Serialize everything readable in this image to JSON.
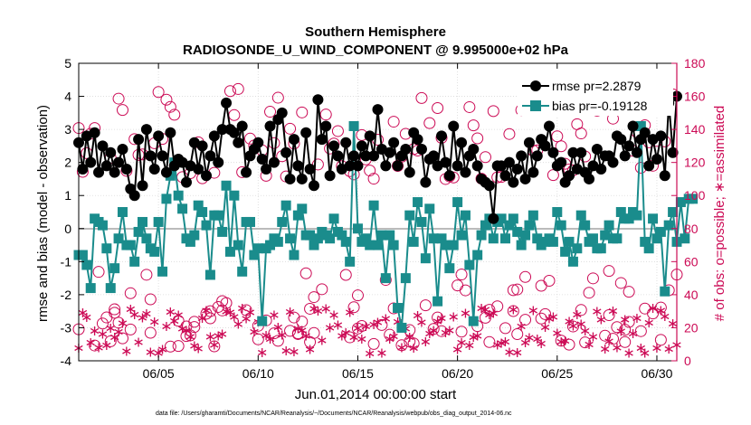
{
  "chart_data": {
    "type": "line",
    "title_line1": "Southern Hemisphere",
    "title_line2": "RADIOSONDE_U_WIND_COMPONENT @ 9.995000e+02 hPa",
    "xlabel": "Jun.01,2014 00:00:00 start",
    "ylabel_left": "rmse and bias (model - observation)",
    "ylabel_right": "# of obs: o=possible; ∗=assimilated",
    "footnote": "data file: /Users/gharamti/Documents/NCAR/Reanalysis/~/Documents/NCAR/Reanalysis/webpub/obs_diag_output_2014-06.nc",
    "x_tick_labels": [
      "06/05",
      "06/10",
      "06/15",
      "06/20",
      "06/25",
      "06/30"
    ],
    "x_tick_days": [
      5,
      10,
      15,
      20,
      25,
      30
    ],
    "xlim": [
      1,
      31
    ],
    "ylim_left": [
      -4,
      5
    ],
    "y_ticks_left": [
      "5",
      "4",
      "3",
      "2",
      "1",
      "0",
      "-1",
      "-2",
      "-3",
      "-4"
    ],
    "ylim_right": [
      0,
      180
    ],
    "y_ticks_right": [
      "180",
      "160",
      "140",
      "120",
      "100",
      "80",
      "60",
      "40",
      "20",
      "0"
    ],
    "grid": true,
    "legend_position": "top-right",
    "colors": {
      "rmse": "#000000",
      "bias": "#1a8c8c",
      "obs": "#cc0a55",
      "zero_line": "#bbbbbb"
    },
    "series": [
      {
        "name": "rmse pr=2.2879",
        "marker": "filled-circle",
        "values": [
          2.6,
          1.8,
          2.8,
          2.0,
          2.9,
          1.7,
          2.5,
          1.9,
          2.3,
          1.7,
          2.0,
          2.4,
          1.8,
          1.2,
          1.0,
          2.7,
          1.3,
          3.0,
          2.2,
          1.8,
          2.8,
          2.2,
          1.7,
          2.9,
          1.9,
          2.1,
          2.0,
          1.4,
          1.9,
          2.6,
          1.8,
          2.5,
          1.6,
          2.2,
          2.8,
          2.0,
          3.0,
          3.8,
          3.0,
          2.9,
          2.6,
          3.1,
          1.7,
          2.2,
          2.4,
          2.6,
          2.1,
          1.8,
          3.1,
          2.0,
          3.3,
          3.5,
          2.3,
          1.5,
          2.7,
          1.9,
          1.5,
          2.9,
          1.8,
          1.3,
          3.9,
          2.7,
          3.1,
          1.6,
          2.5,
          2.2,
          1.8,
          2.6,
          1.9,
          2.2,
          1.9,
          2.5,
          2.2,
          2.8,
          2.2,
          3.6,
          2.4,
          1.9,
          2.3,
          2.6,
          1.9,
          2.2,
          2.4,
          1.7,
          2.9,
          2.7,
          2.4,
          1.4,
          2.1,
          2.2,
          1.9,
          2.8,
          2.0,
          1.6,
          3.1,
          1.9,
          2.6,
          1.7,
          2.2,
          2.4,
          1.9,
          1.5,
          1.4,
          1.3,
          0.3,
          1.9,
          1.9,
          1.6,
          2.0,
          1.4,
          1.8,
          2.2,
          1.5,
          2.6,
          1.7,
          2.2,
          2.7,
          2.5,
          3.1,
          2.3,
          1.9,
          2.0,
          1.4,
          1.6,
          2.3,
          1.8,
          2.3,
          1.7,
          1.5,
          1.9,
          2.4,
          1.8,
          2.2,
          2.2,
          2.0,
          2.8,
          2.7,
          2.2,
          2.5,
          3.1,
          2.3,
          2.7,
          2.9,
          1.9,
          2.7,
          2.1,
          2.8,
          1.6,
          3.8,
          2.3,
          4.0
        ]
      },
      {
        "name": "bias pr=-0.19128",
        "marker": "filled-square",
        "values": [
          -0.8,
          -0.8,
          -1.1,
          -1.8,
          0.3,
          0.2,
          0.1,
          -0.6,
          -1.8,
          -1.2,
          -0.3,
          0.5,
          -0.5,
          -0.5,
          -1.0,
          -0.1,
          0.2,
          -0.3,
          -0.6,
          -0.7,
          0.2,
          -1.3,
          0.9,
          1.6,
          2.0,
          1.0,
          0.6,
          -0.3,
          -0.4,
          -0.2,
          0.7,
          0.5,
          0.1,
          -1.4,
          0.4,
          0.4,
          -0.1,
          1.3,
          -0.7,
          1.0,
          -0.5,
          -1.3,
          0.2,
          0.2,
          -0.8,
          -0.6,
          -2.8,
          -0.6,
          -0.5,
          -0.3,
          -0.4,
          0.2,
          0.7,
          -0.3,
          -0.8,
          0.4,
          0.6,
          -0.2,
          -0.2,
          -0.5,
          -0.3,
          -0.1,
          -0.2,
          -0.3,
          0.3,
          -0.1,
          -0.2,
          -0.4,
          -1.0,
          3.1,
          0.0,
          -0.4,
          -0.3,
          -0.5,
          0.7,
          -0.5,
          -0.2,
          -1.5,
          -0.2,
          -0.5,
          -2.4,
          -3.0,
          -1.5,
          0.4,
          -0.4,
          0.8,
          0.2,
          -0.9,
          0.6,
          -0.3,
          -2.2,
          -0.3,
          -0.5,
          -1.2,
          -0.5,
          0.8,
          -0.2,
          0.4,
          -1.1,
          -2.8,
          -0.8,
          -0.2,
          0.1,
          0.3,
          -0.3,
          0.2,
          0.3,
          -0.3,
          0.1,
          0.3,
          -0.1,
          -0.5,
          -0.2,
          0.1,
          0.4,
          -0.3,
          -0.5,
          -0.4,
          -0.3,
          -0.4,
          0.5,
          0.1,
          -0.7,
          -0.4,
          -1.0,
          -0.6,
          0.4,
          0.1,
          -0.4,
          -0.3,
          -0.6,
          -0.6,
          -0.2,
          0.1,
          -0.3,
          -0.3,
          0.5,
          0.3,
          0.3,
          0.5,
          0.4,
          3.1,
          -0.4,
          -0.6,
          0.3,
          -0.3,
          -0.1,
          -1.9,
          0.1,
          0.5,
          -0.4,
          0.8,
          -0.3,
          0.9,
          0.9
        ]
      }
    ],
    "obs_possible_note": "circle markers, right axis",
    "obs_assimilated_note": "star markers, right axis"
  }
}
